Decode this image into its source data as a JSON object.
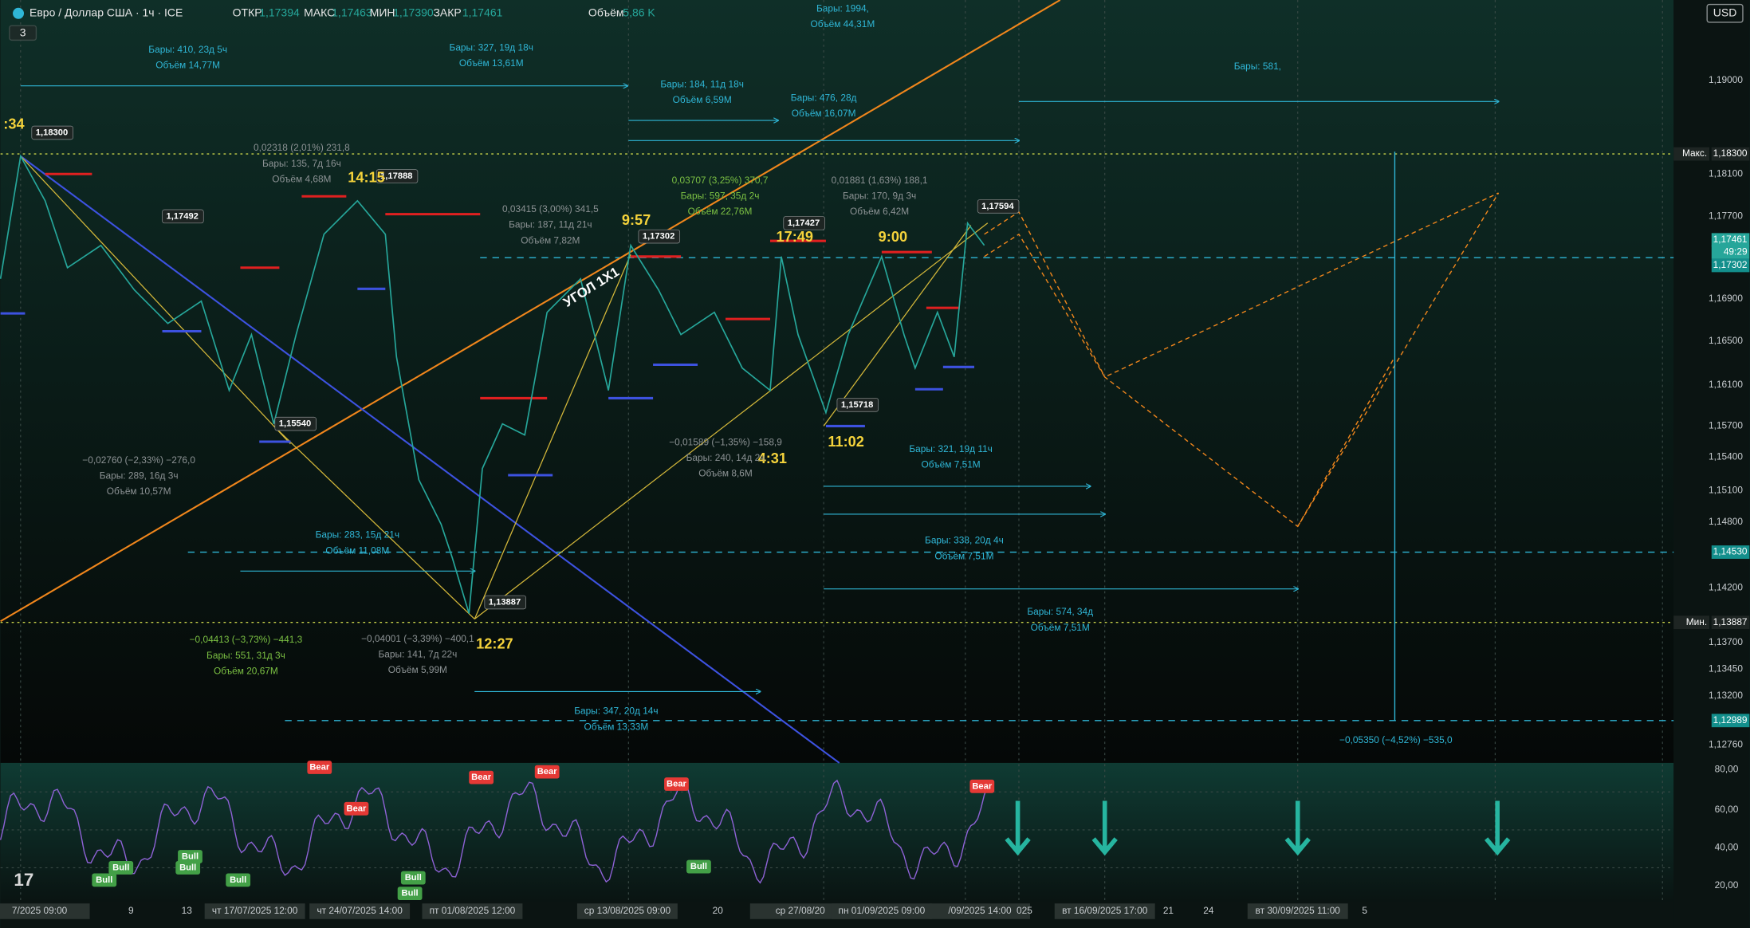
{
  "header": {
    "symbol": "Евро / Доллар США · 1ч · ICE",
    "open_label": "ОТКР",
    "open": "1,17394",
    "high_label": "МАКС",
    "high": "1,17463",
    "low_label": "МИН",
    "low": "1,17390",
    "close_label": "ЗАКР",
    "close": "1,17461",
    "volume_label": "Объём",
    "volume": "5,86 K",
    "indicators": "3"
  },
  "currency": "USD",
  "price_axis": [
    "1,19000",
    "1,18100",
    "1,17700",
    "1,16900",
    "1,16500",
    "1,16100",
    "1,15700",
    "1,15400",
    "1,15100",
    "1,14800",
    "1,14200",
    "1,13700",
    "1,13450",
    "1,13200",
    "1,12760"
  ],
  "badges": [
    "Макс.",
    "1,18300",
    "1,17461",
    "49:29",
    "1,17302",
    "1,14530",
    "Мин.",
    "1,13887",
    "1,12989"
  ],
  "rsi_axis": [
    "80,00",
    "60,00",
    "40,00",
    "20,00"
  ],
  "time_axis": [
    "7/2025  09:00",
    "9",
    "13",
    "чт 17/07/2025  12:00",
    "чт 24/07/2025  14:00",
    "пт 01/08/2025  12:00",
    "ср 13/08/2025  09:00",
    "20",
    "ср 27/08/20",
    "пн 01/09/2025  09:00",
    "/09/2025  14:00",
    "025",
    "вт 16/09/2025  17:00",
    "21",
    "24",
    "вт 30/09/2025  11:00",
    "5"
  ],
  "price_tags": [
    "1,18300",
    "1,17492",
    "1,15540",
    "1,17888",
    "1,17302",
    "1,17427",
    "1,17594",
    "1,15718",
    "1,13887"
  ],
  "time_markers": [
    ":34",
    "14:15",
    "9:57",
    "17:49",
    "9:00",
    "11:02",
    "4:31",
    "12:27"
  ],
  "angle_label": "УГОЛ 1X1",
  "measures": [
    [
      "Бары: 410, 23д 5ч",
      "Объём 14,77M"
    ],
    [
      "Бары: 327, 19д 18ч",
      "Объём 13,61M"
    ],
    [
      "Бары: 1994,",
      "Объём 44,31M"
    ],
    [
      "Бары: 184, 11д 18ч",
      "Объём 6,59M"
    ],
    [
      "Бары: 476, 28д",
      "Объём 16,07M"
    ],
    [
      "Бары: 581,"
    ],
    [
      "0,02318 (2,01%) 231,8",
      "Бары: 135, 7д 16ч",
      "Объём 4,68M"
    ],
    [
      "0,03415 (3,00%) 341,5",
      "Бары: 187, 11д 21ч",
      "Объём 7,82M"
    ],
    [
      "0,03707 (3,25%) 370,7",
      "Бары: 597, 35д 2ч",
      "Объём 22,76M"
    ],
    [
      "0,01881 (1,63%) 188,1",
      "Бары: 170, 9д 3ч",
      "Объём 6,42M"
    ],
    [
      "−0,02760 (−2,33%) −276,0",
      "Бары: 289, 16д 3ч",
      "Объём 10,57M"
    ],
    [
      "−0,01589 (−1,35%) −158,9",
      "Бары: 240, 14д 2ч",
      "Объём 8,6M"
    ],
    [
      "Бары: 321, 19д 11ч",
      "Объём 7,51M"
    ],
    [
      "Бары: 283, 15д 21ч",
      "Объём 11,08M"
    ],
    [
      "Бары: 338, 20д 4ч",
      "Объём 7,51M"
    ],
    [
      "Бары: 574, 34д",
      "Объём 7,51M"
    ],
    [
      "−0,04413 (−3,73%) −441,3",
      "Бары: 551, 31д 3ч",
      "Объём 20,67M"
    ],
    [
      "−0,04001 (−3,39%) −400,1",
      "Бары: 141, 7д 22ч",
      "Объём 5,99M"
    ],
    [
      "Бары: 347, 20д 14ч",
      "Объём 13,33M"
    ],
    [
      "−0,05350 (−4,52%) −535,0"
    ]
  ],
  "signals": [
    "Bear",
    "Bear",
    "Bear",
    "Bear",
    "Bear",
    "Bear",
    "Bull",
    "Bull",
    "Bull",
    "Bull",
    "Bull",
    "Bull",
    "Bull",
    "Bull"
  ]
}
